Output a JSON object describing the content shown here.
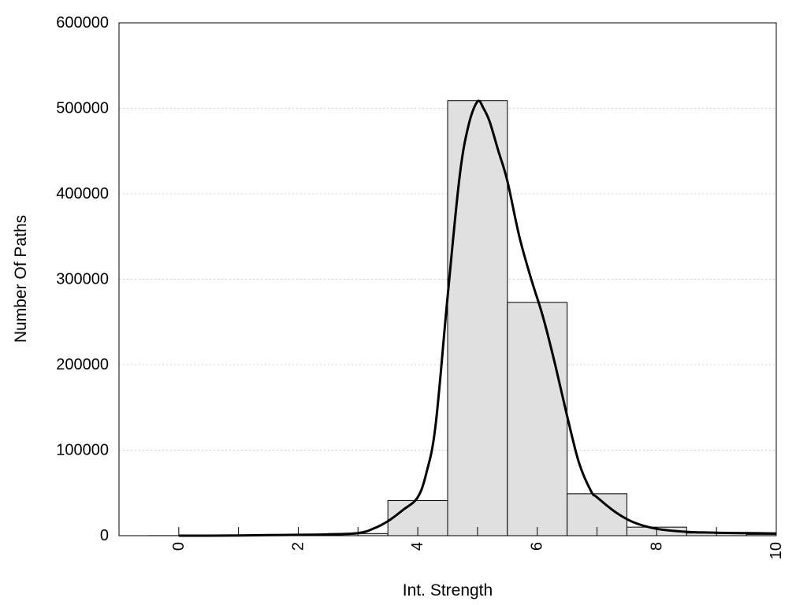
{
  "chart_data": {
    "type": "bar",
    "xlabel": "Int. Strength",
    "ylabel": "Number Of Paths",
    "xlim": [
      -1,
      10
    ],
    "ylim": [
      0,
      600000
    ],
    "grid": true,
    "x_ticks": [
      0,
      2,
      4,
      6,
      8,
      10
    ],
    "x_tick_labels": [
      "0",
      "2",
      "4",
      "6",
      "8",
      "10"
    ],
    "y_ticks": [
      0,
      100000,
      200000,
      300000,
      400000,
      500000,
      600000
    ],
    "y_tick_labels": [
      "0",
      "100000",
      "200000",
      "300000",
      "400000",
      "500000",
      "600000"
    ],
    "bar_color": "#e0e0e0",
    "categories": [
      0,
      1,
      2,
      3,
      4,
      5,
      6,
      7,
      8,
      9,
      10
    ],
    "values": [
      100,
      200,
      600,
      2500,
      41000,
      509000,
      273000,
      49000,
      10000,
      3000,
      1500
    ],
    "curve": {
      "color": "#000000",
      "x": [
        0,
        0.5,
        1,
        1.5,
        2,
        2.5,
        3,
        3.25,
        3.5,
        3.75,
        4,
        4.15,
        4.3,
        4.5,
        4.7,
        4.85,
        5,
        5.1,
        5.2,
        5.35,
        5.5,
        5.7,
        5.9,
        6.1,
        6.3,
        6.5,
        6.7,
        6.9,
        7,
        7.3,
        7.6,
        8,
        8.5,
        9,
        9.5,
        10
      ],
      "y": [
        0,
        0,
        200,
        700,
        1000,
        1500,
        3000,
        8000,
        17000,
        30000,
        45000,
        75000,
        130000,
        280000,
        420000,
        480000,
        508000,
        500000,
        485000,
        450000,
        415000,
        350000,
        300000,
        255000,
        200000,
        140000,
        85000,
        52000,
        45000,
        28000,
        16000,
        8000,
        4500,
        3500,
        3000,
        2500
      ]
    }
  }
}
